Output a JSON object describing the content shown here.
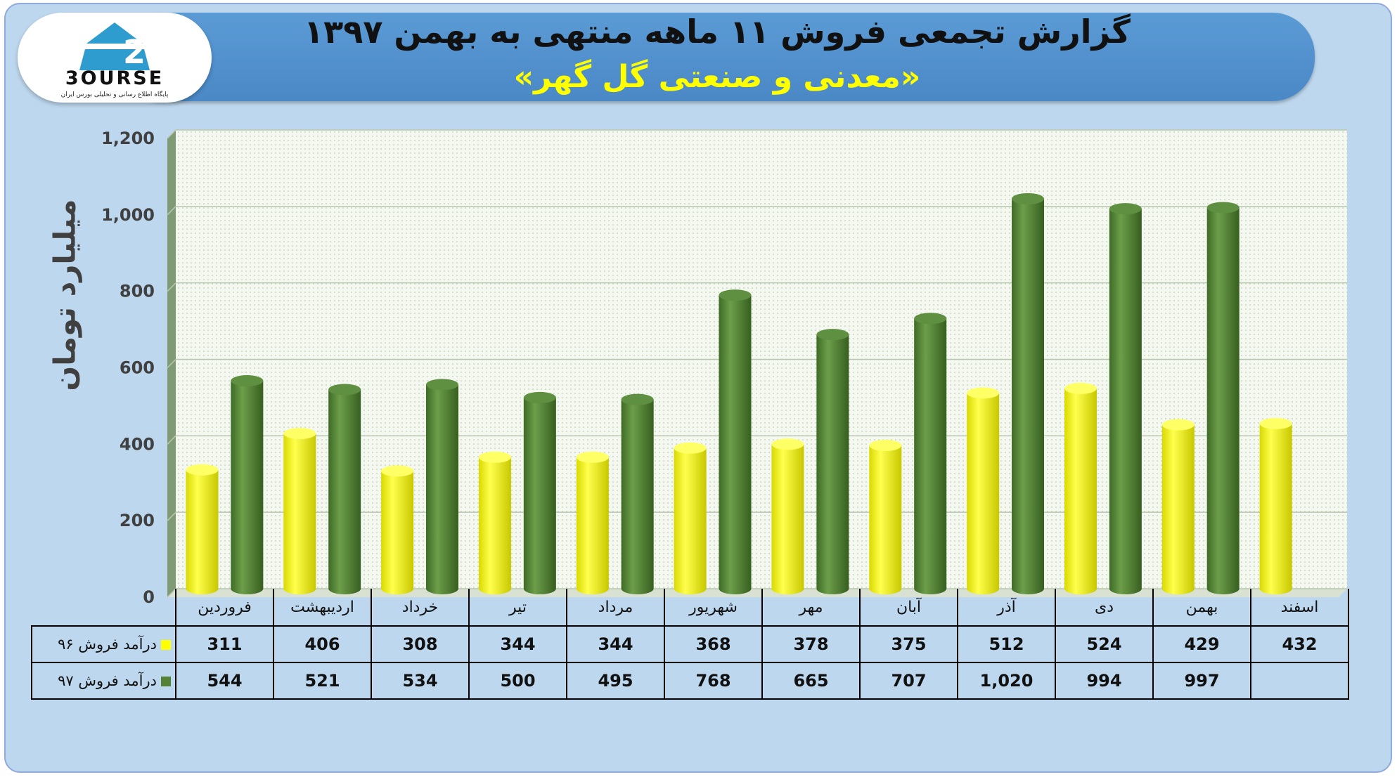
{
  "header": {
    "title": "گزارش تجمعی فروش ۱۱ ماهه منتهی به بهمن ۱۳۹۷",
    "subtitle": "«معدنی و صنعتی گل گهر»"
  },
  "logo": {
    "name": "3OURSE",
    "tagline": "پایگاه اطلاع رسانی و تحلیلی بورس ایران"
  },
  "colors": {
    "series96": "#ffff00",
    "series97": "#548235",
    "banner": "#5b9bd5",
    "background": "#bdd7ee"
  },
  "chart_data": {
    "type": "bar",
    "ylabel": "میلیارد تومان",
    "ylim": [
      0,
      1200
    ],
    "yticks": [
      "0",
      "200",
      "400",
      "600",
      "800",
      "1,000",
      "1,200"
    ],
    "grid": true,
    "categories": [
      "فروردین",
      "اردیبهشت",
      "خرداد",
      "تیر",
      "مرداد",
      "شهریور",
      "مهر",
      "آبان",
      "آذر",
      "دی",
      "بهمن",
      "اسفند"
    ],
    "series": [
      {
        "name": "درآمد فروش ۹۶",
        "values": [
          311,
          406,
          308,
          344,
          344,
          368,
          378,
          375,
          512,
          524,
          429,
          432
        ],
        "labels": [
          "311",
          "406",
          "308",
          "344",
          "344",
          "368",
          "378",
          "375",
          "512",
          "524",
          "429",
          "432"
        ]
      },
      {
        "name": "درآمد فروش ۹۷",
        "values": [
          544,
          521,
          534,
          500,
          495,
          768,
          665,
          707,
          1020,
          994,
          997,
          null
        ],
        "labels": [
          "544",
          "521",
          "534",
          "500",
          "495",
          "768",
          "665",
          "707",
          "1,020",
          "994",
          "997",
          ""
        ]
      }
    ]
  }
}
